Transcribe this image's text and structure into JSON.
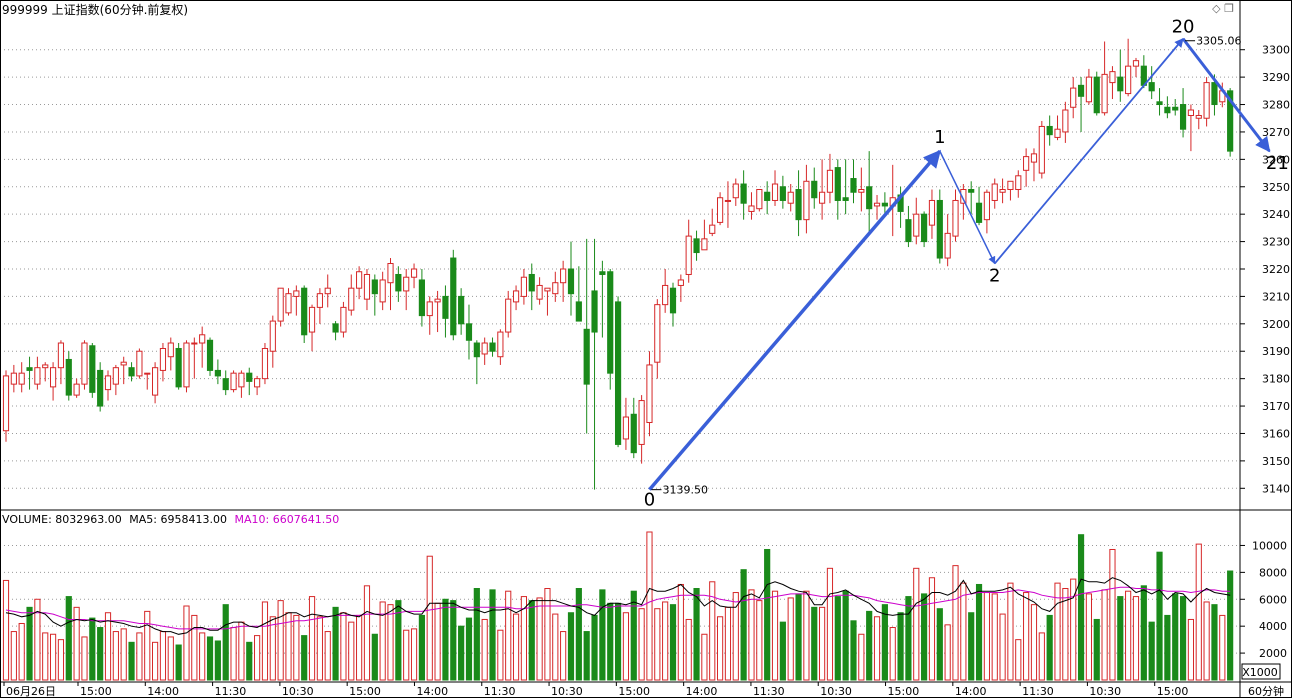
{
  "title": "999999 上证指数(60分钟.前复权)",
  "window_icons": [
    "diamond-icon",
    "restore-icon"
  ],
  "volume_header": {
    "volume_label": "VOLUME:",
    "volume_value": "8032963.00",
    "ma5_label": "MA5:",
    "ma5_value": "6958413.00",
    "ma10_label": "MA10:",
    "ma10_value": "6607641.50"
  },
  "volume_unit": "X1000",
  "period_label": "60分钟",
  "colors": {
    "up": "#d62728",
    "down": "#1a8a1a",
    "arrow": "#3a5fd8",
    "ma5": "#000000",
    "ma10": "#cc00cc",
    "grid": "#9a9a9a",
    "axis": "#000000"
  },
  "chart_data": {
    "type": "candlestick",
    "price_axis": {
      "min": 3135,
      "max": 3305,
      "ticks": [
        3140,
        3150,
        3160,
        3170,
        3180,
        3190,
        3200,
        3210,
        3220,
        3230,
        3240,
        3250,
        3260,
        3270,
        3280,
        3290,
        3300
      ]
    },
    "volume_axis": {
      "min": 0,
      "max": 11000,
      "ticks": [
        2000,
        4000,
        6000,
        8000,
        10000
      ]
    },
    "x_labels": [
      "06月26日",
      "15:00",
      "14:00",
      "11:30",
      "10:30",
      "15:00",
      "14:00",
      "11:30",
      "10:30",
      "15:00",
      "14:00",
      "11:30",
      "10:30",
      "15:00",
      "14:00",
      "11:30",
      "10:30",
      "15:00"
    ],
    "annotations": {
      "low_label": "3139.50",
      "high_label": "3305.06",
      "wave_labels": [
        "0",
        "1",
        "2",
        "20",
        "21"
      ]
    },
    "wave_points": [
      {
        "label": "0",
        "bar": 82,
        "price": 3139.5
      },
      {
        "label": "1",
        "bar": 119,
        "price": 3263
      },
      {
        "label": "2",
        "bar": 126,
        "price": 3222
      },
      {
        "label": "20",
        "bar": 150,
        "price": 3304
      },
      {
        "label": "21",
        "bar": 161,
        "price": 3263
      }
    ],
    "candles": [
      [
        3161,
        3181,
        3157,
        3183
      ],
      [
        3178,
        3182,
        3175,
        3185
      ],
      [
        3178,
        3182,
        3175,
        3186
      ],
      [
        3184,
        3183,
        3176,
        3188
      ],
      [
        3178,
        3184,
        3176,
        3188
      ],
      [
        3184,
        3185,
        3179,
        3186
      ],
      [
        3177,
        3184,
        3172,
        3186
      ],
      [
        3184,
        3193,
        3178,
        3194
      ],
      [
        3187,
        3174,
        3172,
        3190
      ],
      [
        3174,
        3178,
        3173,
        3180
      ],
      [
        3178,
        3193,
        3176,
        3194
      ],
      [
        3192,
        3175,
        3173,
        3193
      ],
      [
        3183,
        3170,
        3168,
        3186
      ],
      [
        3176,
        3181,
        3172,
        3183
      ],
      [
        3178,
        3184,
        3174,
        3185
      ],
      [
        3185,
        3186,
        3178,
        3188
      ],
      [
        3184,
        3181,
        3179,
        3186
      ],
      [
        3181,
        3190,
        3180,
        3191
      ],
      [
        3182,
        3182,
        3176,
        3182
      ],
      [
        3174,
        3184,
        3171,
        3186
      ],
      [
        3183,
        3191,
        3179,
        3193
      ],
      [
        3188,
        3193,
        3183,
        3195
      ],
      [
        3191,
        3177,
        3176,
        3193
      ],
      [
        3177,
        3193,
        3175,
        3194
      ],
      [
        3193,
        3193,
        3180,
        3195
      ],
      [
        3193,
        3196,
        3184,
        3199
      ],
      [
        3194,
        3183,
        3181,
        3195
      ],
      [
        3183,
        3181,
        3178,
        3187
      ],
      [
        3180,
        3176,
        3174,
        3183
      ],
      [
        3176,
        3182,
        3175,
        3183
      ],
      [
        3177,
        3182,
        3173,
        3183
      ],
      [
        3182,
        3179,
        3174,
        3184
      ],
      [
        3177,
        3180,
        3174,
        3181
      ],
      [
        3180,
        3191,
        3178,
        3193
      ],
      [
        3190,
        3201,
        3184,
        3203
      ],
      [
        3201,
        3213,
        3199,
        3213
      ],
      [
        3204,
        3211,
        3203,
        3213
      ],
      [
        3210,
        3212,
        3203,
        3214
      ],
      [
        3213,
        3196,
        3193,
        3214
      ],
      [
        3197,
        3206,
        3190,
        3207
      ],
      [
        3206,
        3211,
        3200,
        3213
      ],
      [
        3211,
        3213,
        3206,
        3218
      ],
      [
        3200,
        3197,
        3194,
        3201
      ],
      [
        3197,
        3206,
        3195,
        3208
      ],
      [
        3205,
        3213,
        3203,
        3218
      ],
      [
        3213,
        3219,
        3209,
        3221
      ],
      [
        3209,
        3218,
        3205,
        3220
      ],
      [
        3216,
        3211,
        3203,
        3218
      ],
      [
        3208,
        3216,
        3205,
        3219
      ],
      [
        3215,
        3222,
        3205,
        3224
      ],
      [
        3218,
        3212,
        3208,
        3221
      ],
      [
        3212,
        3217,
        3205,
        3220
      ],
      [
        3217,
        3220,
        3213,
        3222
      ],
      [
        3216,
        3203,
        3199,
        3220
      ],
      [
        3203,
        3208,
        3196,
        3210
      ],
      [
        3208,
        3209,
        3197,
        3212
      ],
      [
        3210,
        3202,
        3195,
        3214
      ],
      [
        3224,
        3196,
        3194,
        3227
      ],
      [
        3210,
        3200,
        3196,
        3213
      ],
      [
        3200,
        3194,
        3187,
        3207
      ],
      [
        3193,
        3188,
        3178,
        3194
      ],
      [
        3189,
        3193,
        3185,
        3195
      ],
      [
        3193,
        3190,
        3188,
        3195
      ],
      [
        3188,
        3197,
        3185,
        3198
      ],
      [
        3197,
        3209,
        3195,
        3212
      ],
      [
        3208,
        3212,
        3205,
        3214
      ],
      [
        3210,
        3217,
        3207,
        3220
      ],
      [
        3218,
        3212,
        3205,
        3222
      ],
      [
        3209,
        3214,
        3207,
        3217
      ],
      [
        3212,
        3213,
        3203,
        3213
      ],
      [
        3211,
        3215,
        3208,
        3219
      ],
      [
        3215,
        3220,
        3208,
        3223
      ],
      [
        3220,
        3211,
        3203,
        3230
      ],
      [
        3208,
        3201,
        3201,
        3221
      ],
      [
        3198,
        3178,
        3160,
        3231
      ],
      [
        3212,
        3197,
        3139.5,
        3231
      ],
      [
        3219,
        3218,
        3195,
        3223
      ],
      [
        3219,
        3182,
        3176,
        3220
      ],
      [
        3208,
        3156,
        3155,
        3210
      ],
      [
        3158,
        3166,
        3154,
        3173
      ],
      [
        3167,
        3153,
        3151,
        3173
      ],
      [
        3156,
        3172,
        3149,
        3174
      ],
      [
        3164,
        3185,
        3159,
        3190
      ],
      [
        3186,
        3207,
        3180,
        3209
      ],
      [
        3207,
        3214,
        3204,
        3220
      ],
      [
        3213,
        3204,
        3199,
        3215
      ],
      [
        3214,
        3216,
        3208,
        3218
      ],
      [
        3218,
        3232,
        3215,
        3238
      ],
      [
        3231,
        3226,
        3223,
        3234
      ],
      [
        3227,
        3231,
        3227,
        3238
      ],
      [
        3233,
        3236,
        3232,
        3242
      ],
      [
        3237,
        3246,
        3236,
        3248
      ],
      [
        3245,
        3245,
        3235,
        3252
      ],
      [
        3246,
        3251,
        3243,
        3253
      ],
      [
        3251,
        3244,
        3238,
        3256
      ],
      [
        3241,
        3243,
        3238,
        3248
      ],
      [
        3242,
        3249,
        3241,
        3249
      ],
      [
        3248,
        3245,
        3240,
        3252
      ],
      [
        3245,
        3251,
        3243,
        3256
      ],
      [
        3250,
        3245,
        3242,
        3254
      ],
      [
        3244,
        3248,
        3241,
        3251
      ],
      [
        3249,
        3238,
        3232,
        3256
      ],
      [
        3238,
        3252,
        3233,
        3258
      ],
      [
        3252,
        3246,
        3242,
        3257
      ],
      [
        3244,
        3248,
        3238,
        3260
      ],
      [
        3248,
        3256,
        3244,
        3262
      ],
      [
        3257,
        3245,
        3238,
        3260
      ],
      [
        3246,
        3245,
        3240,
        3260
      ],
      [
        3253,
        3248,
        3244,
        3260
      ],
      [
        3248,
        3249,
        3241,
        3257
      ],
      [
        3250,
        3242,
        3233,
        3263
      ],
      [
        3243,
        3244,
        3238,
        3247
      ],
      [
        3244,
        3243,
        3240,
        3248
      ],
      [
        3243,
        3246,
        3232,
        3258
      ],
      [
        3247,
        3241,
        3235,
        3250
      ],
      [
        3238,
        3230,
        3228,
        3243
      ],
      [
        3232,
        3240,
        3229,
        3246
      ],
      [
        3240,
        3230,
        3228,
        3241
      ],
      [
        3236,
        3245,
        3231,
        3249
      ],
      [
        3245,
        3224,
        3222,
        3249
      ],
      [
        3224,
        3233,
        3221,
        3240
      ],
      [
        3232,
        3245,
        3230,
        3249
      ],
      [
        3244,
        3249,
        3238,
        3251
      ],
      [
        3249,
        3248,
        3240,
        3252
      ],
      [
        3244,
        3237,
        3236,
        3250
      ],
      [
        3238,
        3248,
        3233,
        3249
      ],
      [
        3245,
        3251,
        3242,
        3253
      ],
      [
        3248,
        3249,
        3244,
        3253
      ],
      [
        3249,
        3252,
        3245,
        3252
      ],
      [
        3249,
        3254,
        3246,
        3256
      ],
      [
        3256,
        3261,
        3250,
        3264
      ],
      [
        3259,
        3262,
        3252,
        3264
      ],
      [
        3255,
        3272,
        3253,
        3274
      ],
      [
        3272,
        3269,
        3265,
        3276
      ],
      [
        3268,
        3271,
        3267,
        3276
      ],
      [
        3270,
        3278,
        3266,
        3281
      ],
      [
        3279,
        3286,
        3275,
        3290
      ],
      [
        3287,
        3283,
        3270,
        3290
      ],
      [
        3281,
        3290,
        3280,
        3293
      ],
      [
        3290,
        3277,
        3276,
        3292
      ],
      [
        3277,
        3291,
        3276,
        3303
      ],
      [
        3288,
        3292,
        3282,
        3294
      ],
      [
        3290,
        3285,
        3281,
        3300
      ],
      [
        3284,
        3294,
        3283,
        3304
      ],
      [
        3294,
        3296,
        3290,
        3297
      ],
      [
        3294,
        3287,
        3286,
        3298
      ],
      [
        3288,
        3285,
        3282,
        3294
      ],
      [
        3281,
        3280,
        3276,
        3286
      ],
      [
        3279,
        3277,
        3275,
        3283
      ],
      [
        3279,
        3278,
        3276,
        3282
      ],
      [
        3280,
        3271,
        3268,
        3286
      ],
      [
        3276,
        3278,
        3263,
        3280
      ],
      [
        3275,
        3276,
        3271,
        3278
      ],
      [
        3275,
        3288,
        3272,
        3290
      ],
      [
        3288,
        3280,
        3276,
        3291
      ],
      [
        3281,
        3285,
        3279,
        3288
      ],
      [
        3285,
        3263,
        3261,
        3286
      ]
    ],
    "volumes": [
      7400,
      3600,
      4200,
      5400,
      6000,
      3500,
      3400,
      3000,
      6200,
      5400,
      3200,
      4600,
      3900,
      5000,
      3600,
      3800,
      2800,
      3500,
      5100,
      2800,
      3600,
      3200,
      2600,
      5500,
      4800,
      3500,
      3200,
      2900,
      5600,
      3900,
      4300,
      2800,
      3300,
      5800,
      4700,
      5900,
      5000,
      4800,
      3300,
      6200,
      4700,
      3600,
      5400,
      5000,
      4300,
      4800,
      7000,
      3400,
      5800,
      5600,
      5900,
      3700,
      3800,
      4800,
      9200,
      5700,
      6000,
      5900,
      4000,
      4600,
      6800,
      4500,
      6700,
      3700,
      6600,
      4900,
      6200,
      5900,
      6100,
      6800,
      4900,
      3600,
      5000,
      6800,
      3600,
      4800,
      6700,
      5700,
      5700,
      5000,
      6600,
      5300,
      11000,
      5300,
      5800,
      5600,
      7100,
      4500,
      6800,
      3400,
      7300,
      4700,
      5400,
      6500,
      8200,
      6700,
      5900,
      9700,
      6600,
      4300,
      6100,
      6400,
      6600,
      5400,
      5400,
      8300,
      6200,
      6600,
      4400,
      3400,
      5100,
      4700,
      5600,
      3900,
      5000,
      6200,
      8300,
      6400,
      7600,
      5300,
      4100,
      8500,
      7200,
      5000,
      7100,
      6500,
      6400,
      4900,
      7200,
      3000,
      6500,
      5600,
      3500,
      4800,
      7200,
      6800,
      7500,
      10800,
      6400,
      4500,
      6700,
      9700,
      6200,
      6600,
      6200,
      7000,
      4300,
      9500,
      4800,
      6400,
      6200,
      4500,
      10100,
      5800,
      5600,
      4800,
      8100
    ],
    "ma5": [
      5000,
      4900,
      4700,
      4800,
      5100,
      4900,
      4300,
      4000,
      4300,
      4500,
      4400,
      4500,
      4300,
      4400,
      4300,
      4200,
      4000,
      3900,
      4100,
      3800,
      3600,
      3600,
      3400,
      3500,
      3900,
      3900,
      3700,
      3700,
      4100,
      4300,
      4300,
      4000,
      3900,
      4200,
      4500,
      4700,
      5000,
      5000,
      4700,
      4900,
      4800,
      4700,
      4800,
      5000,
      4800,
      4700,
      5100,
      4900,
      4800,
      5100,
      5500,
      5100,
      4900,
      4900,
      5700,
      5700,
      5700,
      5700,
      5400,
      5200,
      5200,
      5000,
      5200,
      5200,
      5300,
      5000,
      5300,
      5900,
      5900,
      5900,
      5900,
      5700,
      5500,
      5400,
      5000,
      4800,
      5400,
      5700,
      5700,
      5600,
      5800,
      5600,
      6800,
      6600,
      6600,
      6800,
      7100,
      6500,
      6200,
      5500,
      5900,
      5500,
      5400,
      5400,
      6200,
      6400,
      6100,
      7100,
      7300,
      7100,
      6800,
      6600,
      6500,
      5600,
      5600,
      6400,
      6500,
      6700,
      6300,
      6000,
      5700,
      5100,
      4900,
      4800,
      4900,
      4900,
      5700,
      6000,
      6500,
      6500,
      6300,
      6600,
      7400,
      6400,
      6600,
      6600,
      6600,
      6700,
      6900,
      6400,
      6100,
      5800,
      5300,
      5100,
      5700,
      5900,
      6100,
      7500,
      7300,
      7300,
      7200,
      7600,
      7400,
      7000,
      6500,
      6700,
      6400,
      6700,
      6000,
      6500,
      6400,
      5800,
      6400,
      6800,
      6500,
      6400,
      6300
    ],
    "ma10": [
      5200,
      5100,
      5000,
      5000,
      5000,
      5000,
      4900,
      4700,
      4500,
      4500,
      4500,
      4400,
      4400,
      4400,
      4400,
      4400,
      4300,
      4200,
      4200,
      4100,
      4000,
      3900,
      3800,
      3800,
      3800,
      3800,
      3800,
      3800,
      3800,
      3900,
      4000,
      4000,
      4000,
      4000,
      4100,
      4200,
      4300,
      4400,
      4400,
      4500,
      4600,
      4700,
      4800,
      4800,
      4800,
      4800,
      4900,
      4900,
      4900,
      4900,
      5000,
      5100,
      5100,
      5100,
      5200,
      5300,
      5400,
      5400,
      5400,
      5400,
      5400,
      5400,
      5400,
      5400,
      5400,
      5300,
      5300,
      5400,
      5500,
      5500,
      5500,
      5500,
      5500,
      5600,
      5600,
      5500,
      5400,
      5400,
      5500,
      5500,
      5500,
      5500,
      5800,
      6000,
      6100,
      6200,
      6300,
      6300,
      6300,
      6300,
      6200,
      6000,
      5900,
      5800,
      5900,
      6000,
      6000,
      6100,
      6200,
      6300,
      6400,
      6400,
      6400,
      6300,
      6200,
      6200,
      6300,
      6300,
      6300,
      6200,
      6100,
      5900,
      5800,
      5700,
      5600,
      5500,
      5500,
      5600,
      5700,
      5800,
      5900,
      6000,
      6300,
      6400,
      6500,
      6500,
      6500,
      6500,
      6600,
      6700,
      6600,
      6500,
      6300,
      6200,
      6100,
      6100,
      6200,
      6400,
      6500,
      6600,
      6700,
      6800,
      6900,
      6900,
      6800,
      6800,
      6700,
      6700,
      6600,
      6600,
      6600,
      6500,
      6600,
      6700,
      6700,
      6600,
      6600
    ]
  }
}
